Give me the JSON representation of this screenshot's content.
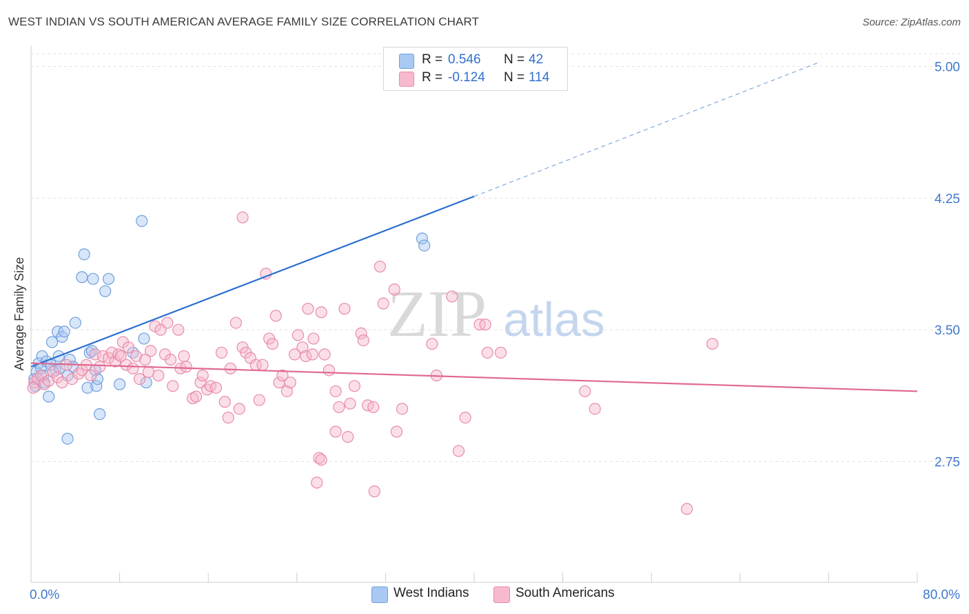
{
  "title": "WEST INDIAN VS SOUTH AMERICAN AVERAGE FAMILY SIZE CORRELATION CHART",
  "source": "Source: ZipAtlas.com",
  "watermark": {
    "zip": "ZIP",
    "atlas": "atlas"
  },
  "legend_top": {
    "rows": [
      {
        "r_label": "R =",
        "r_value": "0.546",
        "n_label": "N =",
        "n_value": "42",
        "color": "#a9c8f2",
        "border": "#6f9fdc"
      },
      {
        "r_label": "R =",
        "r_value": "-0.124",
        "n_label": "N =",
        "n_value": "114",
        "color": "#f7b9cd",
        "border": "#e88aa9"
      }
    ]
  },
  "legend_bottom": [
    {
      "label": "West Indians",
      "color": "#a9c8f2",
      "border": "#6f9fdc"
    },
    {
      "label": "South Americans",
      "color": "#f7b9cd",
      "border": "#e88aa9"
    }
  ],
  "chart_data": {
    "type": "scatter",
    "title": "WEST INDIAN VS SOUTH AMERICAN AVERAGE FAMILY SIZE CORRELATION CHART",
    "xlabel": "",
    "ylabel": "Average Family Size",
    "xlim": [
      0,
      80
    ],
    "ylim": [
      2.25,
      5.2
    ],
    "x_tick_labels": [
      "0.0%",
      "80.0%"
    ],
    "y_ticks": [
      2.75,
      3.5,
      4.25,
      5.0
    ],
    "y_tick_labels": [
      "2.75",
      "3.50",
      "4.25",
      "5.00"
    ],
    "grid": true,
    "legend_position": "top-center",
    "series": [
      {
        "name": "West Indians",
        "color": "#6f9fdc",
        "fill": "#a9c8f2",
        "r": 0.546,
        "n": 42,
        "trend": {
          "x": [
            0,
            40
          ],
          "y": [
            3.29,
            4.26
          ],
          "dashed_to": [
            71,
            5.02
          ]
        },
        "points": [
          [
            0.3,
            3.22
          ],
          [
            0.5,
            3.26
          ],
          [
            0.7,
            3.31
          ],
          [
            0.9,
            3.28
          ],
          [
            1.0,
            3.35
          ],
          [
            1.1,
            3.24
          ],
          [
            1.2,
            3.2
          ],
          [
            1.4,
            3.32
          ],
          [
            1.6,
            3.12
          ],
          [
            1.8,
            3.3
          ],
          [
            1.9,
            3.43
          ],
          [
            2.2,
            3.27
          ],
          [
            2.4,
            3.49
          ],
          [
            2.5,
            3.35
          ],
          [
            2.6,
            3.28
          ],
          [
            2.8,
            3.46
          ],
          [
            3.0,
            3.49
          ],
          [
            3.3,
            3.24
          ],
          [
            3.5,
            3.33
          ],
          [
            3.8,
            3.29
          ],
          [
            4.0,
            3.54
          ],
          [
            3.3,
            2.88
          ],
          [
            4.6,
            3.8
          ],
          [
            4.8,
            3.93
          ],
          [
            5.1,
            3.17
          ],
          [
            5.3,
            3.37
          ],
          [
            5.5,
            3.38
          ],
          [
            5.6,
            3.79
          ],
          [
            5.8,
            3.27
          ],
          [
            5.9,
            3.18
          ],
          [
            6.0,
            3.22
          ],
          [
            6.2,
            3.02
          ],
          [
            6.7,
            3.72
          ],
          [
            7.0,
            3.79
          ],
          [
            8.0,
            3.19
          ],
          [
            9.2,
            3.37
          ],
          [
            10.0,
            4.12
          ],
          [
            10.2,
            3.45
          ],
          [
            10.4,
            3.2
          ],
          [
            35.3,
            4.02
          ],
          [
            35.5,
            3.98
          ],
          [
            0.4,
            3.18
          ]
        ]
      },
      {
        "name": "South Americans",
        "color": "#e88aa9",
        "fill": "#f7b9cd",
        "r": -0.124,
        "n": 114,
        "trend": {
          "x": [
            0,
            80
          ],
          "y": [
            3.31,
            3.15
          ]
        },
        "points": [
          [
            0.3,
            3.2
          ],
          [
            0.6,
            3.22
          ],
          [
            0.9,
            3.24
          ],
          [
            1.2,
            3.19
          ],
          [
            1.6,
            3.21
          ],
          [
            2.0,
            3.26
          ],
          [
            2.4,
            3.23
          ],
          [
            2.8,
            3.2
          ],
          [
            3.2,
            3.3
          ],
          [
            3.7,
            3.22
          ],
          [
            4.3,
            3.25
          ],
          [
            4.6,
            3.27
          ],
          [
            5.0,
            3.3
          ],
          [
            5.4,
            3.24
          ],
          [
            5.8,
            3.36
          ],
          [
            6.2,
            3.29
          ],
          [
            6.5,
            3.35
          ],
          [
            7.0,
            3.34
          ],
          [
            7.3,
            3.37
          ],
          [
            7.6,
            3.32
          ],
          [
            7.9,
            3.36
          ],
          [
            8.3,
            3.43
          ],
          [
            8.1,
            3.35
          ],
          [
            8.6,
            3.3
          ],
          [
            8.8,
            3.4
          ],
          [
            9.2,
            3.28
          ],
          [
            9.5,
            3.35
          ],
          [
            9.8,
            3.22
          ],
          [
            10.3,
            3.33
          ],
          [
            10.6,
            3.26
          ],
          [
            10.8,
            3.38
          ],
          [
            11.2,
            3.52
          ],
          [
            11.5,
            3.24
          ],
          [
            11.7,
            3.5
          ],
          [
            12.1,
            3.36
          ],
          [
            12.3,
            3.54
          ],
          [
            12.6,
            3.33
          ],
          [
            12.8,
            3.18
          ],
          [
            13.3,
            3.5
          ],
          [
            13.5,
            3.28
          ],
          [
            13.8,
            3.35
          ],
          [
            14.0,
            3.29
          ],
          [
            14.6,
            3.11
          ],
          [
            14.9,
            3.12
          ],
          [
            15.3,
            3.2
          ],
          [
            15.5,
            3.24
          ],
          [
            15.9,
            3.16
          ],
          [
            16.2,
            3.18
          ],
          [
            16.7,
            3.17
          ],
          [
            17.2,
            3.37
          ],
          [
            17.5,
            3.09
          ],
          [
            17.8,
            3.0
          ],
          [
            18.0,
            3.28
          ],
          [
            18.5,
            3.54
          ],
          [
            18.8,
            3.05
          ],
          [
            19.1,
            3.4
          ],
          [
            19.4,
            3.37
          ],
          [
            19.8,
            3.34
          ],
          [
            19.1,
            4.14
          ],
          [
            20.3,
            3.3
          ],
          [
            20.6,
            3.1
          ],
          [
            20.9,
            3.3
          ],
          [
            21.2,
            3.82
          ],
          [
            21.5,
            3.45
          ],
          [
            21.8,
            3.42
          ],
          [
            22.1,
            3.58
          ],
          [
            22.4,
            3.2
          ],
          [
            22.7,
            3.24
          ],
          [
            23.1,
            3.15
          ],
          [
            23.4,
            3.2
          ],
          [
            23.8,
            3.36
          ],
          [
            24.1,
            3.47
          ],
          [
            24.5,
            3.4
          ],
          [
            24.8,
            3.35
          ],
          [
            25.0,
            3.62
          ],
          [
            25.4,
            3.36
          ],
          [
            25.5,
            3.45
          ],
          [
            26.2,
            3.6
          ],
          [
            26.0,
            2.77
          ],
          [
            26.2,
            2.76
          ],
          [
            25.8,
            2.63
          ],
          [
            26.5,
            3.36
          ],
          [
            26.9,
            3.27
          ],
          [
            27.5,
            3.15
          ],
          [
            27.5,
            2.92
          ],
          [
            27.8,
            3.06
          ],
          [
            28.3,
            3.62
          ],
          [
            28.6,
            2.89
          ],
          [
            28.8,
            3.08
          ],
          [
            29.2,
            3.18
          ],
          [
            29.8,
            3.48
          ],
          [
            30.0,
            3.44
          ],
          [
            30.4,
            3.07
          ],
          [
            30.9,
            3.06
          ],
          [
            31.0,
            2.58
          ],
          [
            31.5,
            3.86
          ],
          [
            31.8,
            3.65
          ],
          [
            32.8,
            3.73
          ],
          [
            33.0,
            2.92
          ],
          [
            33.5,
            3.05
          ],
          [
            36.2,
            3.42
          ],
          [
            36.6,
            3.24
          ],
          [
            38.0,
            3.69
          ],
          [
            38.6,
            2.81
          ],
          [
            39.2,
            3.0
          ],
          [
            40.5,
            3.53
          ],
          [
            41.0,
            3.53
          ],
          [
            41.2,
            3.37
          ],
          [
            42.4,
            3.37
          ],
          [
            50.0,
            3.15
          ],
          [
            50.9,
            3.05
          ],
          [
            59.2,
            2.48
          ],
          [
            61.5,
            3.42
          ],
          [
            0.2,
            3.17
          ]
        ]
      }
    ]
  }
}
